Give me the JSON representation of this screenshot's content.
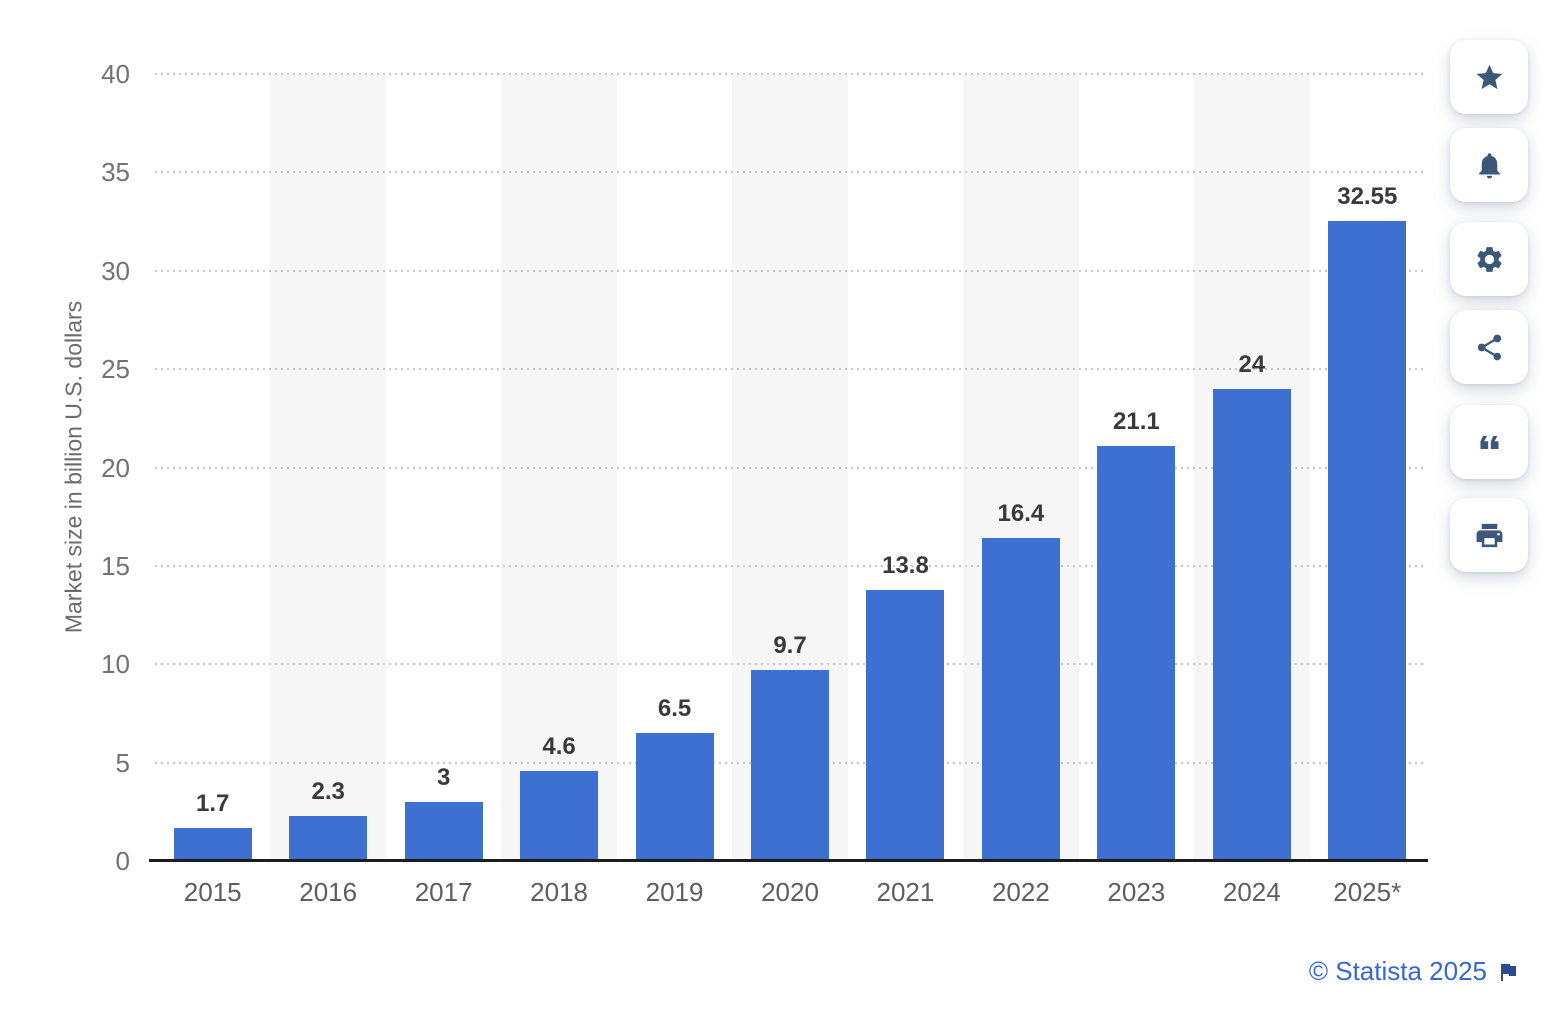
{
  "chart_data": {
    "type": "bar",
    "title": "",
    "xlabel": "",
    "ylabel": "Market size in billion U.S. dollars",
    "categories": [
      "2015",
      "2016",
      "2017",
      "2018",
      "2019",
      "2020",
      "2021",
      "2022",
      "2023",
      "2024",
      "2025*"
    ],
    "values": [
      1.7,
      2.3,
      3,
      4.6,
      6.5,
      9.7,
      13.8,
      16.4,
      21.1,
      24,
      32.55
    ],
    "value_labels": [
      "1.7",
      "2.3",
      "3",
      "4.6",
      "6.5",
      "9.7",
      "13.8",
      "16.4",
      "21.1",
      "24",
      "32.55"
    ],
    "ylim": [
      0,
      40
    ],
    "yticks": [
      0,
      5,
      10,
      15,
      20,
      25,
      30,
      35,
      40
    ],
    "ytick_labels": [
      "0",
      "5",
      "10",
      "15",
      "20",
      "25",
      "30",
      "35",
      "40"
    ],
    "grid": "horizontal-dotted",
    "legend": "none",
    "bar_color": "#3e70d2",
    "band_color": "#f6f6f6",
    "banded_categories": [
      "2016",
      "2018",
      "2020",
      "2022",
      "2024"
    ]
  },
  "toolbar": {
    "buttons": [
      {
        "id": "favorite",
        "icon": "star-icon"
      },
      {
        "id": "alert",
        "icon": "bell-icon"
      },
      {
        "id": "settings",
        "icon": "gear-icon"
      },
      {
        "id": "share",
        "icon": "share-icon"
      },
      {
        "id": "cite",
        "icon": "quote-icon"
      },
      {
        "id": "print",
        "icon": "print-icon"
      }
    ]
  },
  "footer": {
    "attribution": "© Statista 2025",
    "flag_icon": "flag-icon"
  }
}
